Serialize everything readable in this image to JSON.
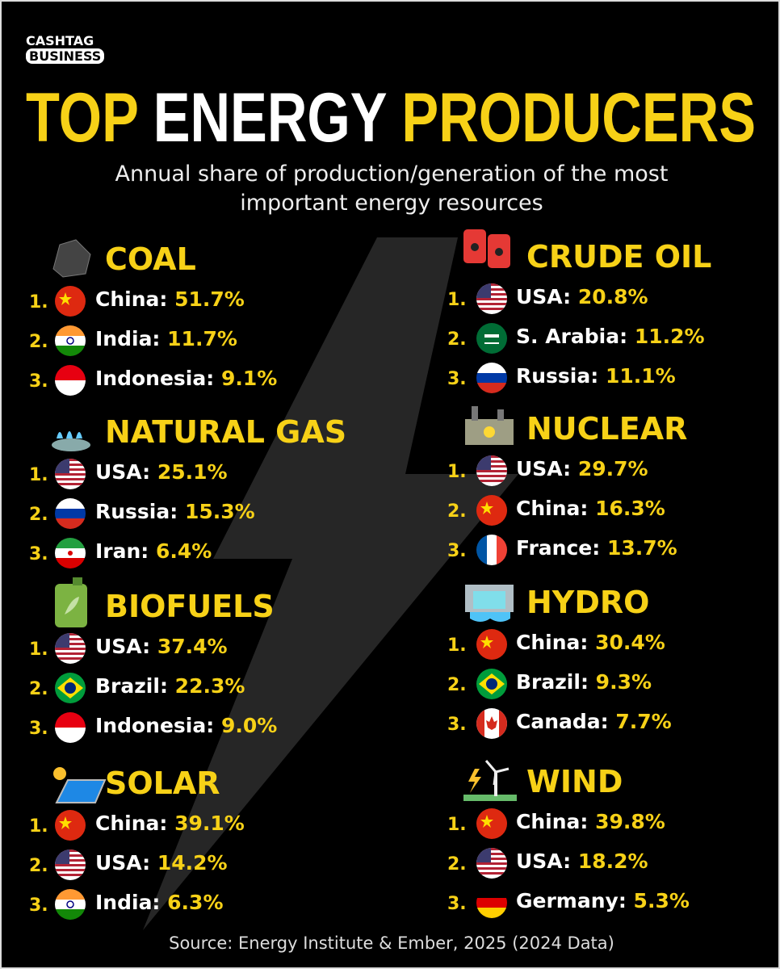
{
  "brand": {
    "line1": "CASHTAG",
    "line2": "BUSINESS"
  },
  "title": {
    "word1": "TOP",
    "word2": "ENERGY",
    "word3": "PRODUCERS"
  },
  "subtitle": "Annual share of production/generation of the most important energy resources",
  "sections": [
    {
      "name": "COAL",
      "items": [
        {
          "rank": "1.",
          "country": "China:",
          "value": "51.7%"
        },
        {
          "rank": "2.",
          "country": "India:",
          "value": "11.7%"
        },
        {
          "rank": "3.",
          "country": "Indonesia:",
          "value": "9.1%"
        }
      ]
    },
    {
      "name": "NATURAL GAS",
      "items": [
        {
          "rank": "1.",
          "country": "USA:",
          "value": "25.1%"
        },
        {
          "rank": "2.",
          "country": "Russia:",
          "value": "15.3%"
        },
        {
          "rank": "3.",
          "country": "Iran:",
          "value": "6.4%"
        }
      ]
    },
    {
      "name": "BIOFUELS",
      "items": [
        {
          "rank": "1.",
          "country": "USA:",
          "value": "37.4%"
        },
        {
          "rank": "2.",
          "country": "Brazil:",
          "value": "22.3%"
        },
        {
          "rank": "3.",
          "country": "Indonesia:",
          "value": "9.0%"
        }
      ]
    },
    {
      "name": "SOLAR",
      "items": [
        {
          "rank": "1.",
          "country": "China:",
          "value": "39.1%"
        },
        {
          "rank": "2.",
          "country": "USA:",
          "value": "14.2%"
        },
        {
          "rank": "3.",
          "country": "India:",
          "value": "6.3%"
        }
      ]
    },
    {
      "name": "CRUDE OIL",
      "items": [
        {
          "rank": "1.",
          "country": "USA:",
          "value": "20.8%"
        },
        {
          "rank": "2.",
          "country": "S. Arabia:",
          "value": "11.2%"
        },
        {
          "rank": "3.",
          "country": "Russia:",
          "value": "11.1%"
        }
      ]
    },
    {
      "name": "NUCLEAR",
      "items": [
        {
          "rank": "1.",
          "country": "USA:",
          "value": "29.7%"
        },
        {
          "rank": "2.",
          "country": "China:",
          "value": "16.3%"
        },
        {
          "rank": "3.",
          "country": "France:",
          "value": "13.7%"
        }
      ]
    },
    {
      "name": "HYDRO",
      "items": [
        {
          "rank": "1.",
          "country": "China:",
          "value": "30.4%"
        },
        {
          "rank": "2.",
          "country": "Brazil:",
          "value": "9.3%"
        },
        {
          "rank": "3.",
          "country": "Canada:",
          "value": "7.7%"
        }
      ]
    },
    {
      "name": "WIND",
      "items": [
        {
          "rank": "1.",
          "country": "China:",
          "value": "39.8%"
        },
        {
          "rank": "2.",
          "country": "USA:",
          "value": "18.2%"
        },
        {
          "rank": "3.",
          "country": "Germany:",
          "value": "5.3%"
        }
      ]
    }
  ],
  "source": "Source: Energy Institute & Ember, 2025 (2024 Data)"
}
